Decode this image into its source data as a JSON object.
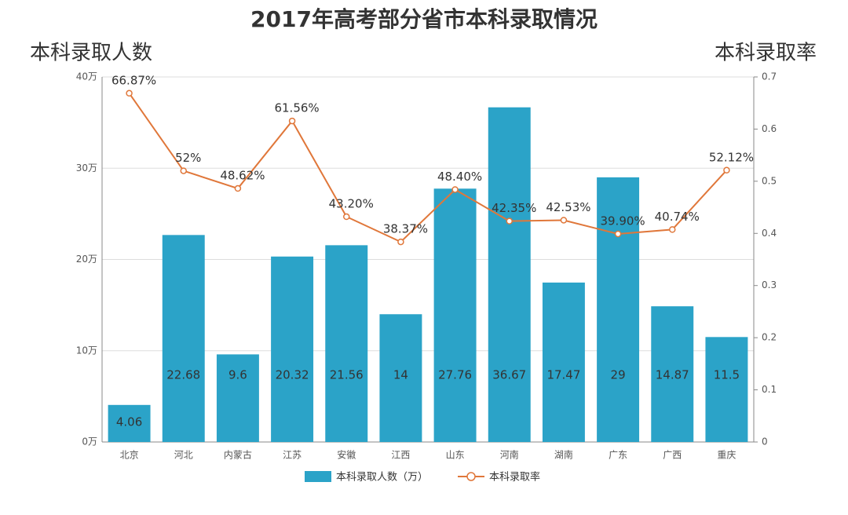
{
  "chart_data": {
    "type": "bar",
    "title": "2017年高考部分省市本科录取情况",
    "y_label": "本科录取人数",
    "y2_label": "本科录取率",
    "categories": [
      "北京",
      "河北",
      "内蒙古",
      "江苏",
      "安徽",
      "江西",
      "山东",
      "河南",
      "湖南",
      "广东",
      "广西",
      "重庆"
    ],
    "series": [
      {
        "name": "本科录取人数（万）",
        "type": "bar",
        "color": "#2ba3c8",
        "values": [
          4.06,
          22.68,
          9.6,
          20.32,
          21.56,
          14,
          27.76,
          36.67,
          17.47,
          29,
          14.87,
          11.5
        ]
      },
      {
        "name": "本科录取率",
        "type": "line",
        "axis": "y2",
        "color": "#e0773a",
        "values": [
          0.6687,
          0.52,
          0.4862,
          0.6156,
          0.432,
          0.3837,
          0.484,
          0.4235,
          0.4253,
          0.399,
          0.4074,
          0.5212
        ],
        "value_labels": [
          "66.87%",
          "52%",
          "48.62%",
          "61.56%",
          "43.20%",
          "38.37%",
          "48.40%",
          "42.35%",
          "42.53%",
          "39.90%",
          "40.74%",
          "52.12%"
        ]
      }
    ],
    "ylim": [
      0,
      40
    ],
    "yticks": [
      {
        "value": 0,
        "label": "0万"
      },
      {
        "value": 10,
        "label": "10万"
      },
      {
        "value": 20,
        "label": "20万"
      },
      {
        "value": 30,
        "label": "30万"
      },
      {
        "value": 40,
        "label": "40万"
      }
    ],
    "y2lim": [
      0,
      0.7
    ],
    "y2ticks": [
      0,
      0.1,
      0.2,
      0.3,
      0.4,
      0.5,
      0.6,
      0.7
    ],
    "grid": true
  }
}
